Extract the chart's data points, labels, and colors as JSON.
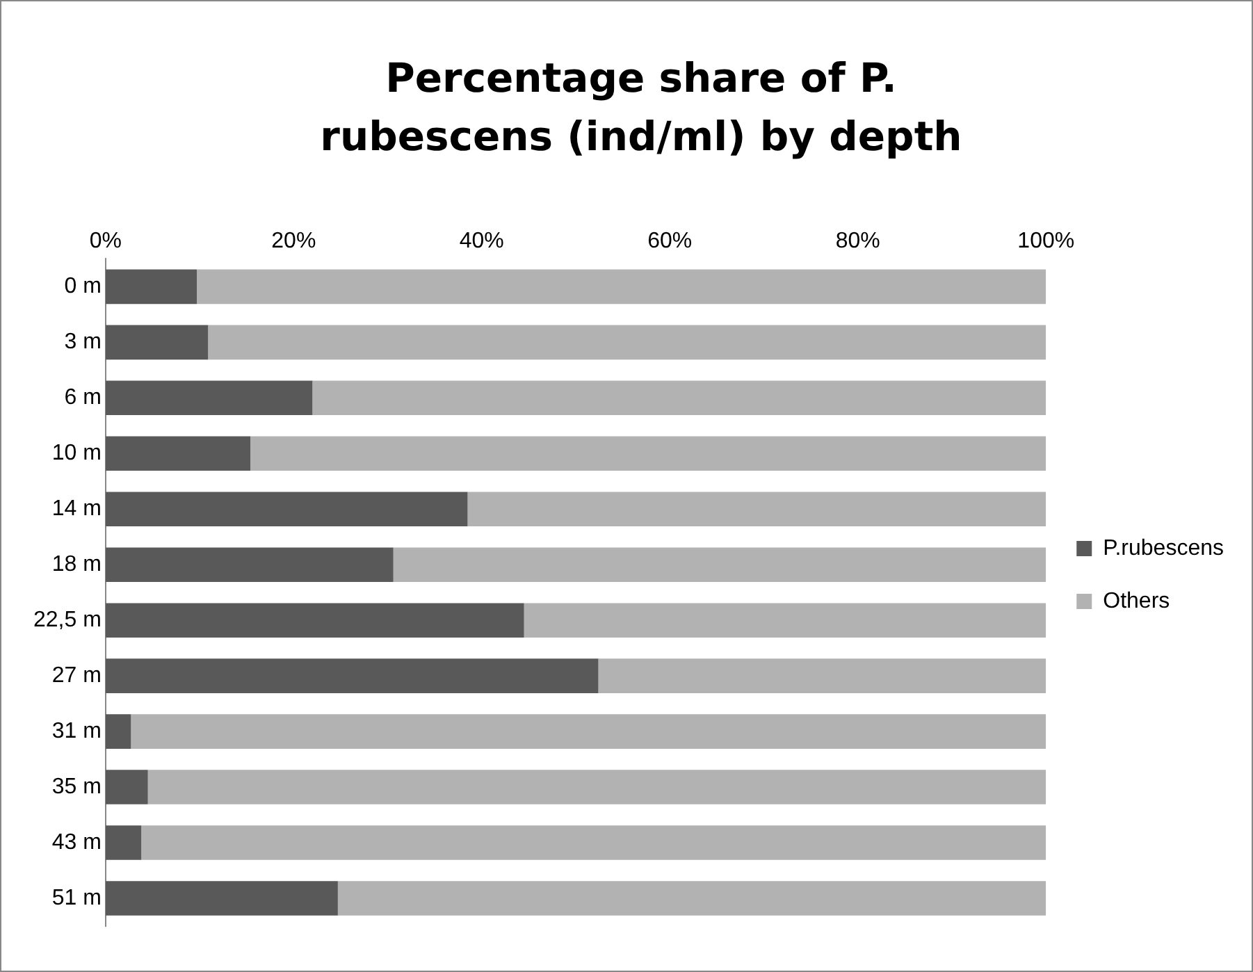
{
  "chart_data": {
    "type": "bar",
    "orientation": "horizontal",
    "stacked": true,
    "title": "Percentage share of P. rubescens (ind/ml) by depth",
    "categories": [
      "0 m",
      "3 m",
      "6 m",
      "10 m",
      "14 m",
      "18 m",
      "22,5 m",
      "27 m",
      "31 m",
      "35 m",
      "43 m",
      "51 m"
    ],
    "series": [
      {
        "name": "P.rubescens",
        "color": "#595959",
        "values": [
          9.7,
          10.9,
          22,
          15.4,
          38.5,
          30.6,
          44.5,
          52.4,
          2.7,
          4.5,
          3.8,
          24.7
        ]
      },
      {
        "name": "Others",
        "color": "#b2b2b2",
        "values": [
          90.3,
          89.1,
          78,
          84.6,
          61.5,
          69.4,
          55.5,
          47.6,
          97.3,
          95.5,
          96.2,
          75.3
        ]
      }
    ],
    "xlim": [
      0,
      100
    ],
    "xticks": [
      {
        "value": 0,
        "label": "0%"
      },
      {
        "value": 20,
        "label": "20%"
      },
      {
        "value": 40,
        "label": "40%"
      },
      {
        "value": 60,
        "label": "60%"
      },
      {
        "value": 80,
        "label": "80%"
      },
      {
        "value": 100,
        "label": "100%"
      }
    ],
    "grid": false,
    "legend": "right"
  }
}
